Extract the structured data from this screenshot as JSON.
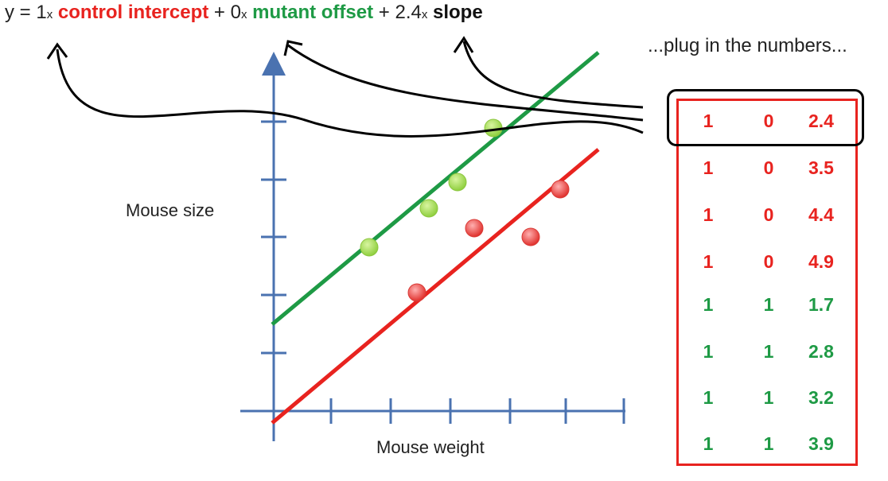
{
  "equation": {
    "prefix": "y = 1",
    "times1": "x",
    "term1": "control intercept",
    "plus1": "+ 0",
    "times2": "x",
    "term2": "mutant offset",
    "plus2": "+ 2.4",
    "times3": "x",
    "term3": "slope"
  },
  "plug_text": "...plug in the numbers...",
  "axes": {
    "ylabel": "Mouse size",
    "xlabel": "Mouse weight"
  },
  "colors": {
    "control": "#e8231f",
    "mutant": "#1e9a45",
    "axis": "#4a72b0",
    "table_border": "#e8231f",
    "highlight": "#000000"
  },
  "table": {
    "rows": [
      {
        "c0": "1",
        "c1": "0",
        "c2": "2.4",
        "group": "control",
        "highlighted": true
      },
      {
        "c0": "1",
        "c1": "0",
        "c2": "3.5",
        "group": "control"
      },
      {
        "c0": "1",
        "c1": "0",
        "c2": "4.4",
        "group": "control"
      },
      {
        "c0": "1",
        "c1": "0",
        "c2": "4.9",
        "group": "control"
      },
      {
        "c0": "1",
        "c1": "1",
        "c2": "1.7",
        "group": "mutant"
      },
      {
        "c0": "1",
        "c1": "1",
        "c2": "2.8",
        "group": "mutant"
      },
      {
        "c0": "1",
        "c1": "1",
        "c2": "3.2",
        "group": "mutant"
      },
      {
        "c0": "1",
        "c1": "1",
        "c2": "3.9",
        "group": "mutant"
      }
    ]
  }
}
